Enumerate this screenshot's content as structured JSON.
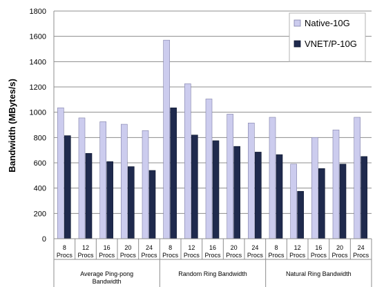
{
  "chart_data": {
    "type": "bar",
    "title": "",
    "ylabel": "Bandwidth (MBytes/s)",
    "xlabel": "",
    "ylim": [
      0,
      1800
    ],
    "yticks": [
      0,
      200,
      400,
      600,
      800,
      1000,
      1200,
      1400,
      1600,
      1800
    ],
    "grid": true,
    "legend_position": "top-right",
    "groups": [
      {
        "label": "Average Ping-pong Bandwidth",
        "categories": [
          "8 Procs",
          "12 Procs",
          "16 Procs",
          "20 Procs",
          "24 Procs"
        ]
      },
      {
        "label": "Random Ring Bandwidth",
        "categories": [
          "8 Procs",
          "12 Procs",
          "16 Procs",
          "20 Procs",
          "24 Procs"
        ]
      },
      {
        "label": "Natural Ring Bandwidth",
        "categories": [
          "8 Procs",
          "12 Procs",
          "16 Procs",
          "20 Procs",
          "24 Procs"
        ]
      }
    ],
    "series": [
      {
        "name": "Native-10G",
        "color": "#ccccee",
        "values": [
          1035,
          955,
          925,
          905,
          855,
          1570,
          1225,
          1105,
          985,
          915,
          960,
          590,
          800,
          860,
          960
        ]
      },
      {
        "name": "VNET/P-10G",
        "color": "#1f2a4d",
        "values": [
          815,
          675,
          610,
          570,
          540,
          1035,
          820,
          775,
          730,
          685,
          665,
          375,
          555,
          590,
          650
        ]
      }
    ]
  }
}
